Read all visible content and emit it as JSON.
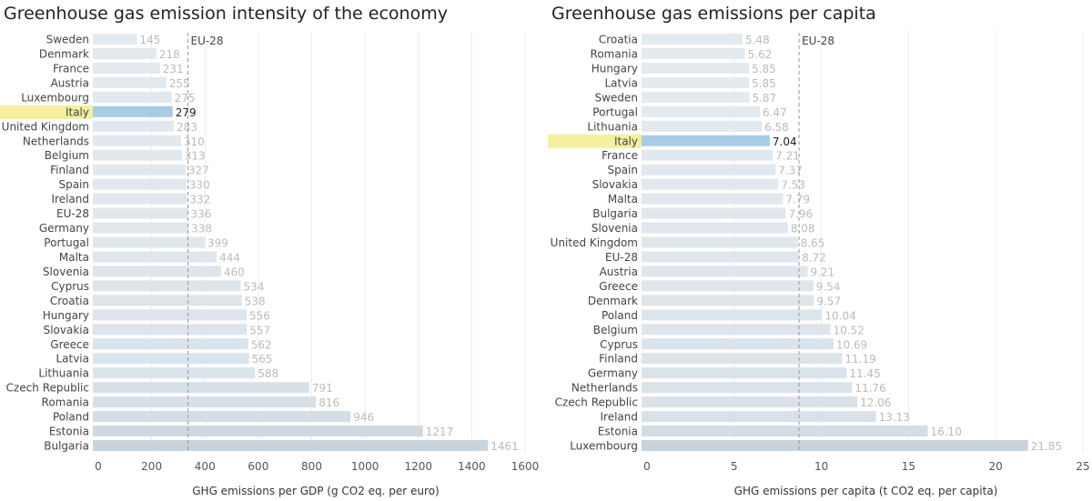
{
  "colors": {
    "bar": "#e3eaf0",
    "bar_dark": "#c9d3dc",
    "highlight_bar": "#a6cce6",
    "highlight_label": "#f4f0a0",
    "ref_line": "#999999"
  },
  "chart_data": [
    {
      "type": "bar",
      "orientation": "horizontal",
      "title": "Greenhouse gas emission intensity of the economy",
      "xlabel": "GHG emissions per GDP (g CO2 eq. per euro)",
      "xlim": [
        0,
        1600
      ],
      "xticks": [
        0,
        200,
        400,
        600,
        800,
        1000,
        1200,
        1400,
        1600
      ],
      "grid": true,
      "highlight": "Italy",
      "reference": {
        "label": "EU-28",
        "value": 336
      },
      "categories": [
        "Sweden",
        "Denmark",
        "France",
        "Austria",
        "Luxembourg",
        "Italy",
        "United Kingdom",
        "Netherlands",
        "Belgium",
        "Finland",
        "Spain",
        "Ireland",
        "EU-28",
        "Germany",
        "Portugal",
        "Malta",
        "Slovenia",
        "Cyprus",
        "Croatia",
        "Hungary",
        "Slovakia",
        "Greece",
        "Latvia",
        "Lithuania",
        "Czech Republic",
        "Romania",
        "Poland",
        "Estonia",
        "Bulgaria"
      ],
      "values": [
        145,
        218,
        231,
        255,
        275,
        279,
        283,
        310,
        313,
        327,
        330,
        332,
        336,
        338,
        399,
        444,
        460,
        534,
        538,
        556,
        557,
        562,
        565,
        588,
        791,
        816,
        946,
        1217,
        1461
      ],
      "labels": [
        "145",
        "218",
        "231",
        "255",
        "275",
        "279",
        "283",
        "310",
        "313",
        "327",
        "330",
        "332",
        "336",
        "338",
        "399",
        "444",
        "460",
        "534",
        "538",
        "556",
        "557",
        "562",
        "565",
        "588",
        "791",
        "816",
        "946",
        "1217",
        "1461"
      ]
    },
    {
      "type": "bar",
      "orientation": "horizontal",
      "title": "Greenhouse gas emissions per capita",
      "xlabel": "GHG emissions per capita (t CO2 eq. per capita)",
      "xlim": [
        0,
        25
      ],
      "xticks": [
        0,
        5,
        10,
        15,
        20,
        25
      ],
      "grid": true,
      "highlight": "Italy",
      "reference": {
        "label": "EU-28",
        "value": 8.72
      },
      "categories": [
        "Croatia",
        "Romania",
        "Hungary",
        "Latvia",
        "Sweden",
        "Portugal",
        "Lithuania",
        "Italy",
        "France",
        "Spain",
        "Slovakia",
        "Malta",
        "Bulgaria",
        "Slovenia",
        "United Kingdom",
        "EU-28",
        "Austria",
        "Greece",
        "Denmark",
        "Poland",
        "Belgium",
        "Cyprus",
        "Finland",
        "Germany",
        "Netherlands",
        "Czech Republic",
        "Ireland",
        "Estonia",
        "Luxembourg"
      ],
      "values": [
        5.48,
        5.62,
        5.85,
        5.85,
        5.87,
        6.47,
        6.58,
        7.04,
        7.21,
        7.37,
        7.53,
        7.79,
        7.96,
        8.08,
        8.65,
        8.72,
        9.21,
        9.54,
        9.57,
        10.04,
        10.52,
        10.69,
        11.19,
        11.45,
        11.76,
        12.06,
        13.13,
        16.1,
        21.85
      ],
      "labels": [
        "5.48",
        "5.62",
        "5.85",
        "5.85",
        "5.87",
        "6.47",
        "6.58",
        "7.04",
        "7.21",
        "7.37",
        "7.53",
        "7.79",
        "7.96",
        "8.08",
        "8.65",
        "8.72",
        "9.21",
        "9.54",
        "9.57",
        "10.04",
        "10.52",
        "10.69",
        "11.19",
        "11.45",
        "11.76",
        "12.06",
        "13.13",
        "16.10",
        "21.85"
      ]
    }
  ]
}
